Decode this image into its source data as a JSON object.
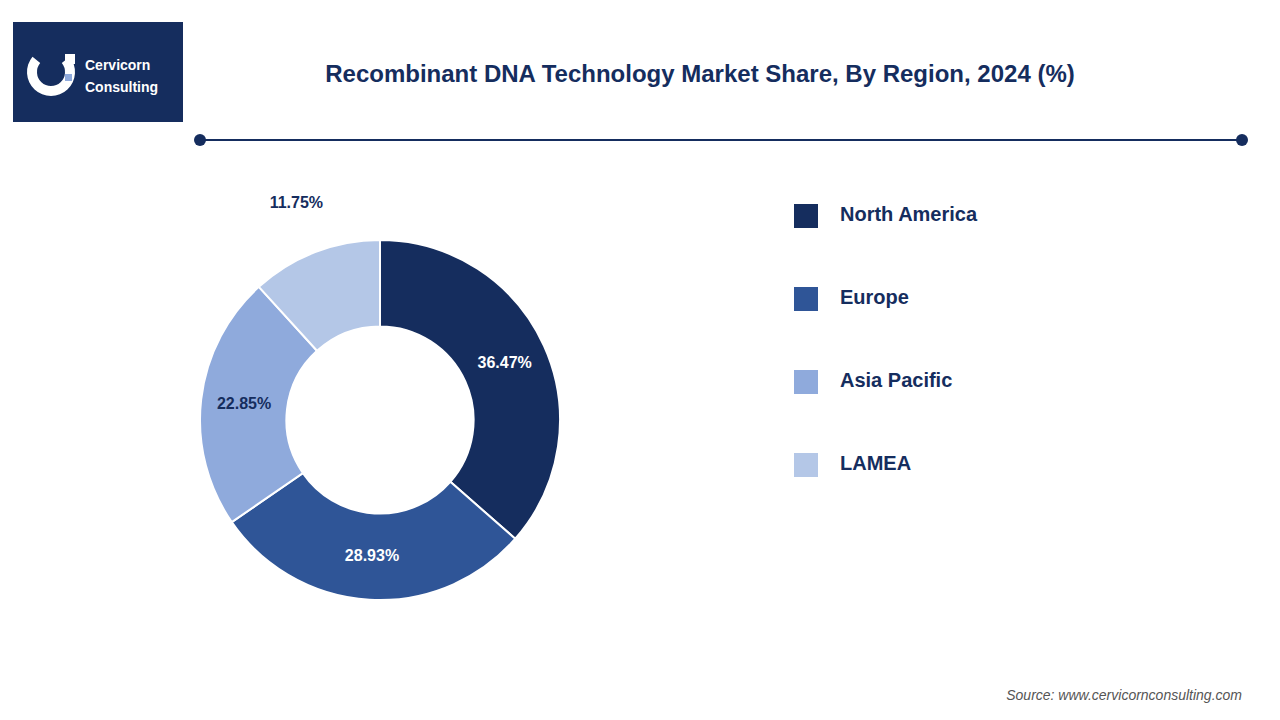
{
  "chart_data": {
    "type": "donut",
    "title": "Recombinant DNA Technology Market Share, By Region, 2024 (%)",
    "categories": [
      "North America",
      "Europe",
      "Asia Pacific",
      "LAMEA"
    ],
    "values": [
      36.47,
      28.93,
      22.85,
      11.75
    ],
    "value_labels": [
      "36.47%",
      "28.93%",
      "22.85%",
      "11.75%"
    ],
    "colors": [
      "#152d5e",
      "#2f5597",
      "#8faadc",
      "#b4c7e7"
    ],
    "data_labels": true,
    "legend": "right",
    "annotations": [
      "Cervicorn",
      "Consulting",
      "Source: www.cervicornconsulting.com"
    ]
  }
}
